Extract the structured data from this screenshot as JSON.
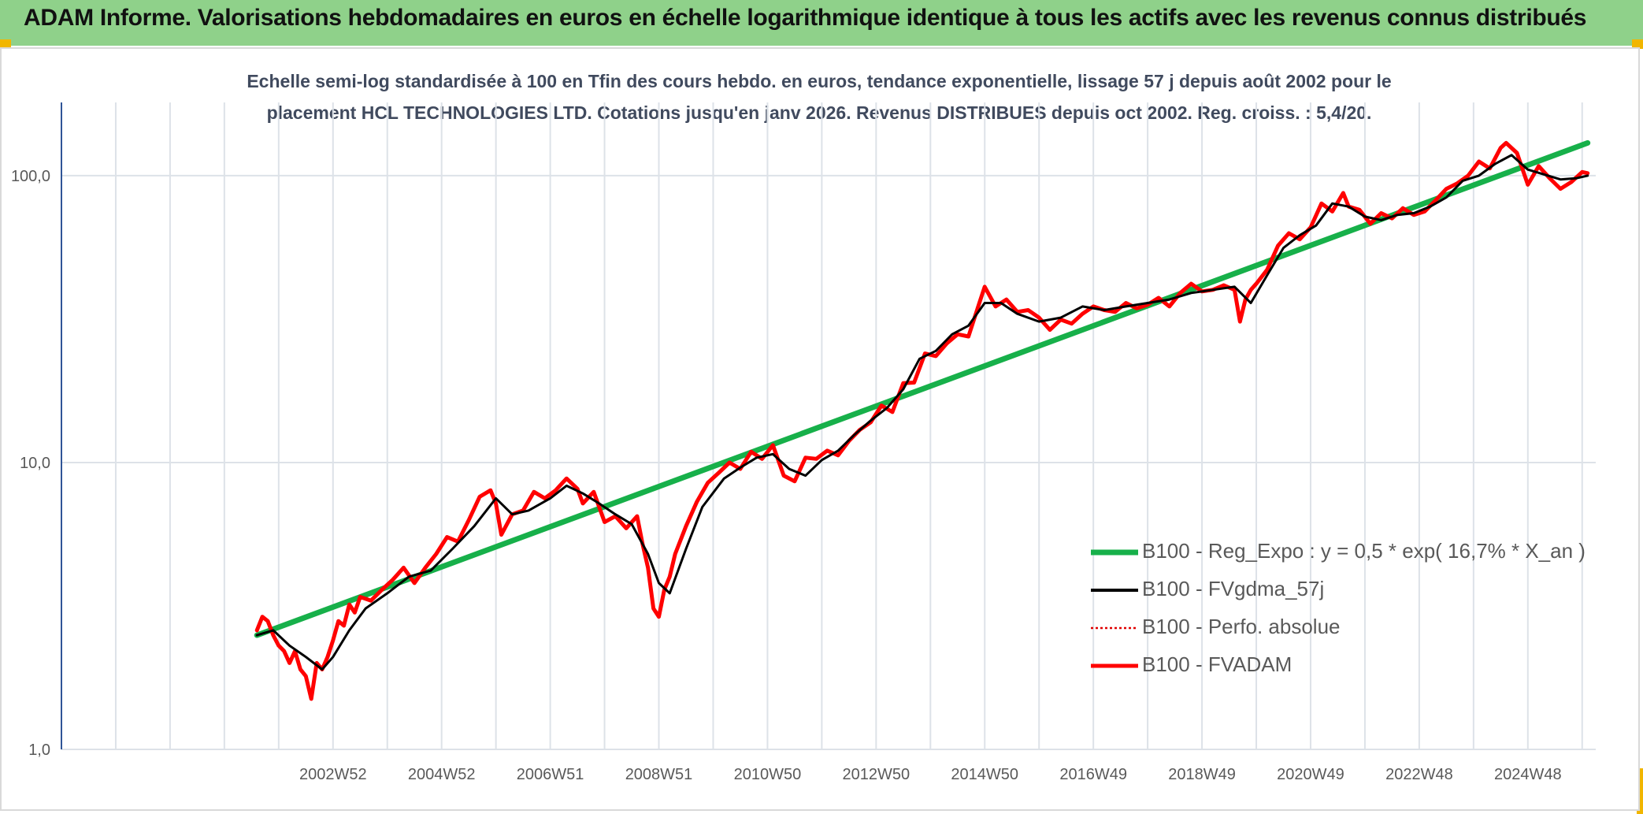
{
  "header": {
    "title": "ADAM Informe. Valorisations hebdomadaires en euros en échelle logarithmique identique à tous les actifs avec les revenus connus distribués"
  },
  "colors": {
    "banner": "#8fd18a",
    "corner": "#f1b600",
    "regression": "#17b04a",
    "fvgdma": "#000000",
    "perfo": "#e00000",
    "fvadam": "#ff0000",
    "grid": "#dde2e8",
    "axis": "#2f5597"
  },
  "chart_data": {
    "type": "line",
    "title": "Echelle semi-log standardisée à 100 en Tfin des cours hebdo. en euros, tendance exponentielle, lissage 57 j depuis août 2002 pour le",
    "subtitle": "placement HCL TECHNOLOGIES LTD. Cotations jusqu'en janv 2026. Revenus DISTRIBUES depuis oct 2002. Reg. croiss. : 5,4/20.",
    "y_scale": "log",
    "ylim": [
      1,
      180
    ],
    "y_ticks": [
      {
        "value": 1,
        "label": "1,0"
      },
      {
        "value": 10,
        "label": "10,0"
      },
      {
        "value": 100,
        "label": "100,0"
      }
    ],
    "xlim": [
      1998.0,
      2026.25
    ],
    "x_ticks": [
      {
        "x": 2003.0,
        "label": "2002W52"
      },
      {
        "x": 2005.0,
        "label": "2004W52"
      },
      {
        "x": 2007.0,
        "label": "2006W51"
      },
      {
        "x": 2009.0,
        "label": "2008W51"
      },
      {
        "x": 2011.0,
        "label": "2010W50"
      },
      {
        "x": 2013.0,
        "label": "2012W50"
      },
      {
        "x": 2015.0,
        "label": "2014W50"
      },
      {
        "x": 2017.0,
        "label": "2016W49"
      },
      {
        "x": 2019.0,
        "label": "2018W49"
      },
      {
        "x": 2021.0,
        "label": "2020W49"
      },
      {
        "x": 2023.0,
        "label": "2022W48"
      },
      {
        "x": 2025.0,
        "label": "2024W48"
      }
    ],
    "grid": true,
    "legend_position": "bottom-right",
    "series": [
      {
        "name": "B100 - Reg_Expo : y = 0,5 * exp( 16,7% *  X_an )",
        "style": "regression",
        "x": [
          2001.6,
          2026.1
        ],
        "y": [
          2.5,
          130
        ]
      },
      {
        "name": "B100 - FVgdma_57j",
        "style": "smooth",
        "x": [
          2001.6,
          2001.9,
          2002.2,
          2002.5,
          2002.8,
          2003.0,
          2003.3,
          2003.6,
          2004.0,
          2004.4,
          2004.8,
          2005.2,
          2005.6,
          2006.0,
          2006.3,
          2006.6,
          2007.0,
          2007.3,
          2007.6,
          2007.9,
          2008.2,
          2008.5,
          2008.8,
          2009.0,
          2009.2,
          2009.5,
          2009.8,
          2010.2,
          2010.5,
          2010.8,
          2011.1,
          2011.4,
          2011.7,
          2012.0,
          2012.3,
          2012.6,
          2012.9,
          2013.2,
          2013.5,
          2013.8,
          2014.1,
          2014.4,
          2014.7,
          2015.0,
          2015.3,
          2015.6,
          2016.0,
          2016.4,
          2016.8,
          2017.2,
          2017.6,
          2018.0,
          2018.4,
          2018.8,
          2019.2,
          2019.6,
          2019.9,
          2020.2,
          2020.5,
          2020.8,
          2021.1,
          2021.4,
          2021.7,
          2022.0,
          2022.3,
          2022.6,
          2022.9,
          2023.2,
          2023.5,
          2023.8,
          2024.1,
          2024.4,
          2024.7,
          2025.0,
          2025.3,
          2025.6,
          2025.9,
          2026.1
        ],
        "y": [
          2.5,
          2.6,
          2.3,
          2.1,
          1.9,
          2.1,
          2.6,
          3.1,
          3.5,
          4.0,
          4.2,
          5.0,
          6.0,
          7.5,
          6.6,
          6.8,
          7.5,
          8.3,
          7.8,
          7.2,
          6.6,
          6.1,
          4.8,
          3.8,
          3.5,
          5.0,
          7.0,
          8.8,
          9.6,
          10.4,
          10.7,
          9.5,
          9.0,
          10.2,
          11.0,
          12.5,
          14.0,
          15.5,
          18.0,
          23.0,
          24.5,
          28.0,
          30.0,
          36.0,
          36.0,
          33.0,
          31.0,
          32.0,
          35.0,
          34.0,
          35.0,
          36.0,
          37.0,
          39.0,
          40.0,
          41.0,
          36.0,
          45.0,
          56.0,
          62.0,
          67.0,
          80.0,
          78.0,
          72.0,
          70.0,
          73.0,
          74.0,
          78.0,
          84.0,
          96.0,
          100.0,
          110.0,
          118.0,
          105.0,
          101.0,
          97.0,
          98.0,
          100.0
        ]
      },
      {
        "name": "B100 - Perfo. absolue",
        "style": "dotted"
      },
      {
        "name": "B100 - FVADAM",
        "style": "bold",
        "x": [
          2001.6,
          2001.7,
          2001.8,
          2001.9,
          2002.0,
          2002.1,
          2002.2,
          2002.3,
          2002.4,
          2002.5,
          2002.6,
          2002.7,
          2002.8,
          2002.9,
          2003.0,
          2003.1,
          2003.2,
          2003.3,
          2003.4,
          2003.5,
          2003.7,
          2003.9,
          2004.1,
          2004.3,
          2004.5,
          2004.7,
          2004.9,
          2005.1,
          2005.3,
          2005.5,
          2005.7,
          2005.9,
          2006.0,
          2006.1,
          2006.3,
          2006.5,
          2006.7,
          2006.9,
          2007.1,
          2007.3,
          2007.5,
          2007.6,
          2007.8,
          2008.0,
          2008.2,
          2008.4,
          2008.6,
          2008.7,
          2008.8,
          2008.9,
          2009.0,
          2009.1,
          2009.2,
          2009.3,
          2009.5,
          2009.7,
          2009.9,
          2010.1,
          2010.3,
          2010.5,
          2010.7,
          2010.9,
          2011.1,
          2011.3,
          2011.5,
          2011.7,
          2011.9,
          2012.1,
          2012.3,
          2012.5,
          2012.7,
          2012.9,
          2013.1,
          2013.3,
          2013.5,
          2013.7,
          2013.9,
          2014.1,
          2014.3,
          2014.5,
          2014.7,
          2014.9,
          2015.0,
          2015.2,
          2015.4,
          2015.6,
          2015.8,
          2016.0,
          2016.2,
          2016.4,
          2016.6,
          2016.8,
          2017.0,
          2017.2,
          2017.4,
          2017.6,
          2017.8,
          2018.0,
          2018.2,
          2018.4,
          2018.6,
          2018.8,
          2019.0,
          2019.2,
          2019.4,
          2019.6,
          2019.7,
          2019.8,
          2019.9,
          2020.0,
          2020.2,
          2020.4,
          2020.6,
          2020.8,
          2021.0,
          2021.2,
          2021.4,
          2021.6,
          2021.7,
          2021.9,
          2022.1,
          2022.3,
          2022.5,
          2022.7,
          2022.9,
          2023.1,
          2023.3,
          2023.5,
          2023.7,
          2023.9,
          2024.1,
          2024.3,
          2024.5,
          2024.6,
          2024.8,
          2025.0,
          2025.2,
          2025.4,
          2025.6,
          2025.8,
          2026.0,
          2026.1
        ],
        "y": [
          2.6,
          2.9,
          2.8,
          2.5,
          2.3,
          2.2,
          2.0,
          2.2,
          1.9,
          1.8,
          1.5,
          2.0,
          1.9,
          2.1,
          2.4,
          2.8,
          2.7,
          3.2,
          3.0,
          3.4,
          3.3,
          3.6,
          3.9,
          4.3,
          3.8,
          4.3,
          4.8,
          5.5,
          5.3,
          6.3,
          7.6,
          8.0,
          7.2,
          5.6,
          6.6,
          6.8,
          7.9,
          7.5,
          8.0,
          8.8,
          8.1,
          7.2,
          7.9,
          6.2,
          6.5,
          5.9,
          6.5,
          5.2,
          4.3,
          3.1,
          2.9,
          3.6,
          4.0,
          4.8,
          6.0,
          7.3,
          8.5,
          9.2,
          10.0,
          9.5,
          10.9,
          10.3,
          11.5,
          9.0,
          8.6,
          10.4,
          10.3,
          11.0,
          10.6,
          11.9,
          13.0,
          13.8,
          15.8,
          15.0,
          18.9,
          19.0,
          24.0,
          23.5,
          26.0,
          28.0,
          27.5,
          36.0,
          41.0,
          35.0,
          37.0,
          33.5,
          34.0,
          32.0,
          29.0,
          31.5,
          30.5,
          33.0,
          35.0,
          34.0,
          33.5,
          36.0,
          34.5,
          35.5,
          37.5,
          35.0,
          39.0,
          42.0,
          39.5,
          40.0,
          41.5,
          40.0,
          31.0,
          37.0,
          40.0,
          42.0,
          47.0,
          57.0,
          63.0,
          60.0,
          66.0,
          80.0,
          75.0,
          87.0,
          78.0,
          76.0,
          68.0,
          74.0,
          71.0,
          77.0,
          73.0,
          75.0,
          82.0,
          90.0,
          94.0,
          100.0,
          112.0,
          106.0,
          125.0,
          130.0,
          120.0,
          93.0,
          108.0,
          98.0,
          90.0,
          95.0,
          103.0,
          102.0
        ]
      }
    ]
  }
}
